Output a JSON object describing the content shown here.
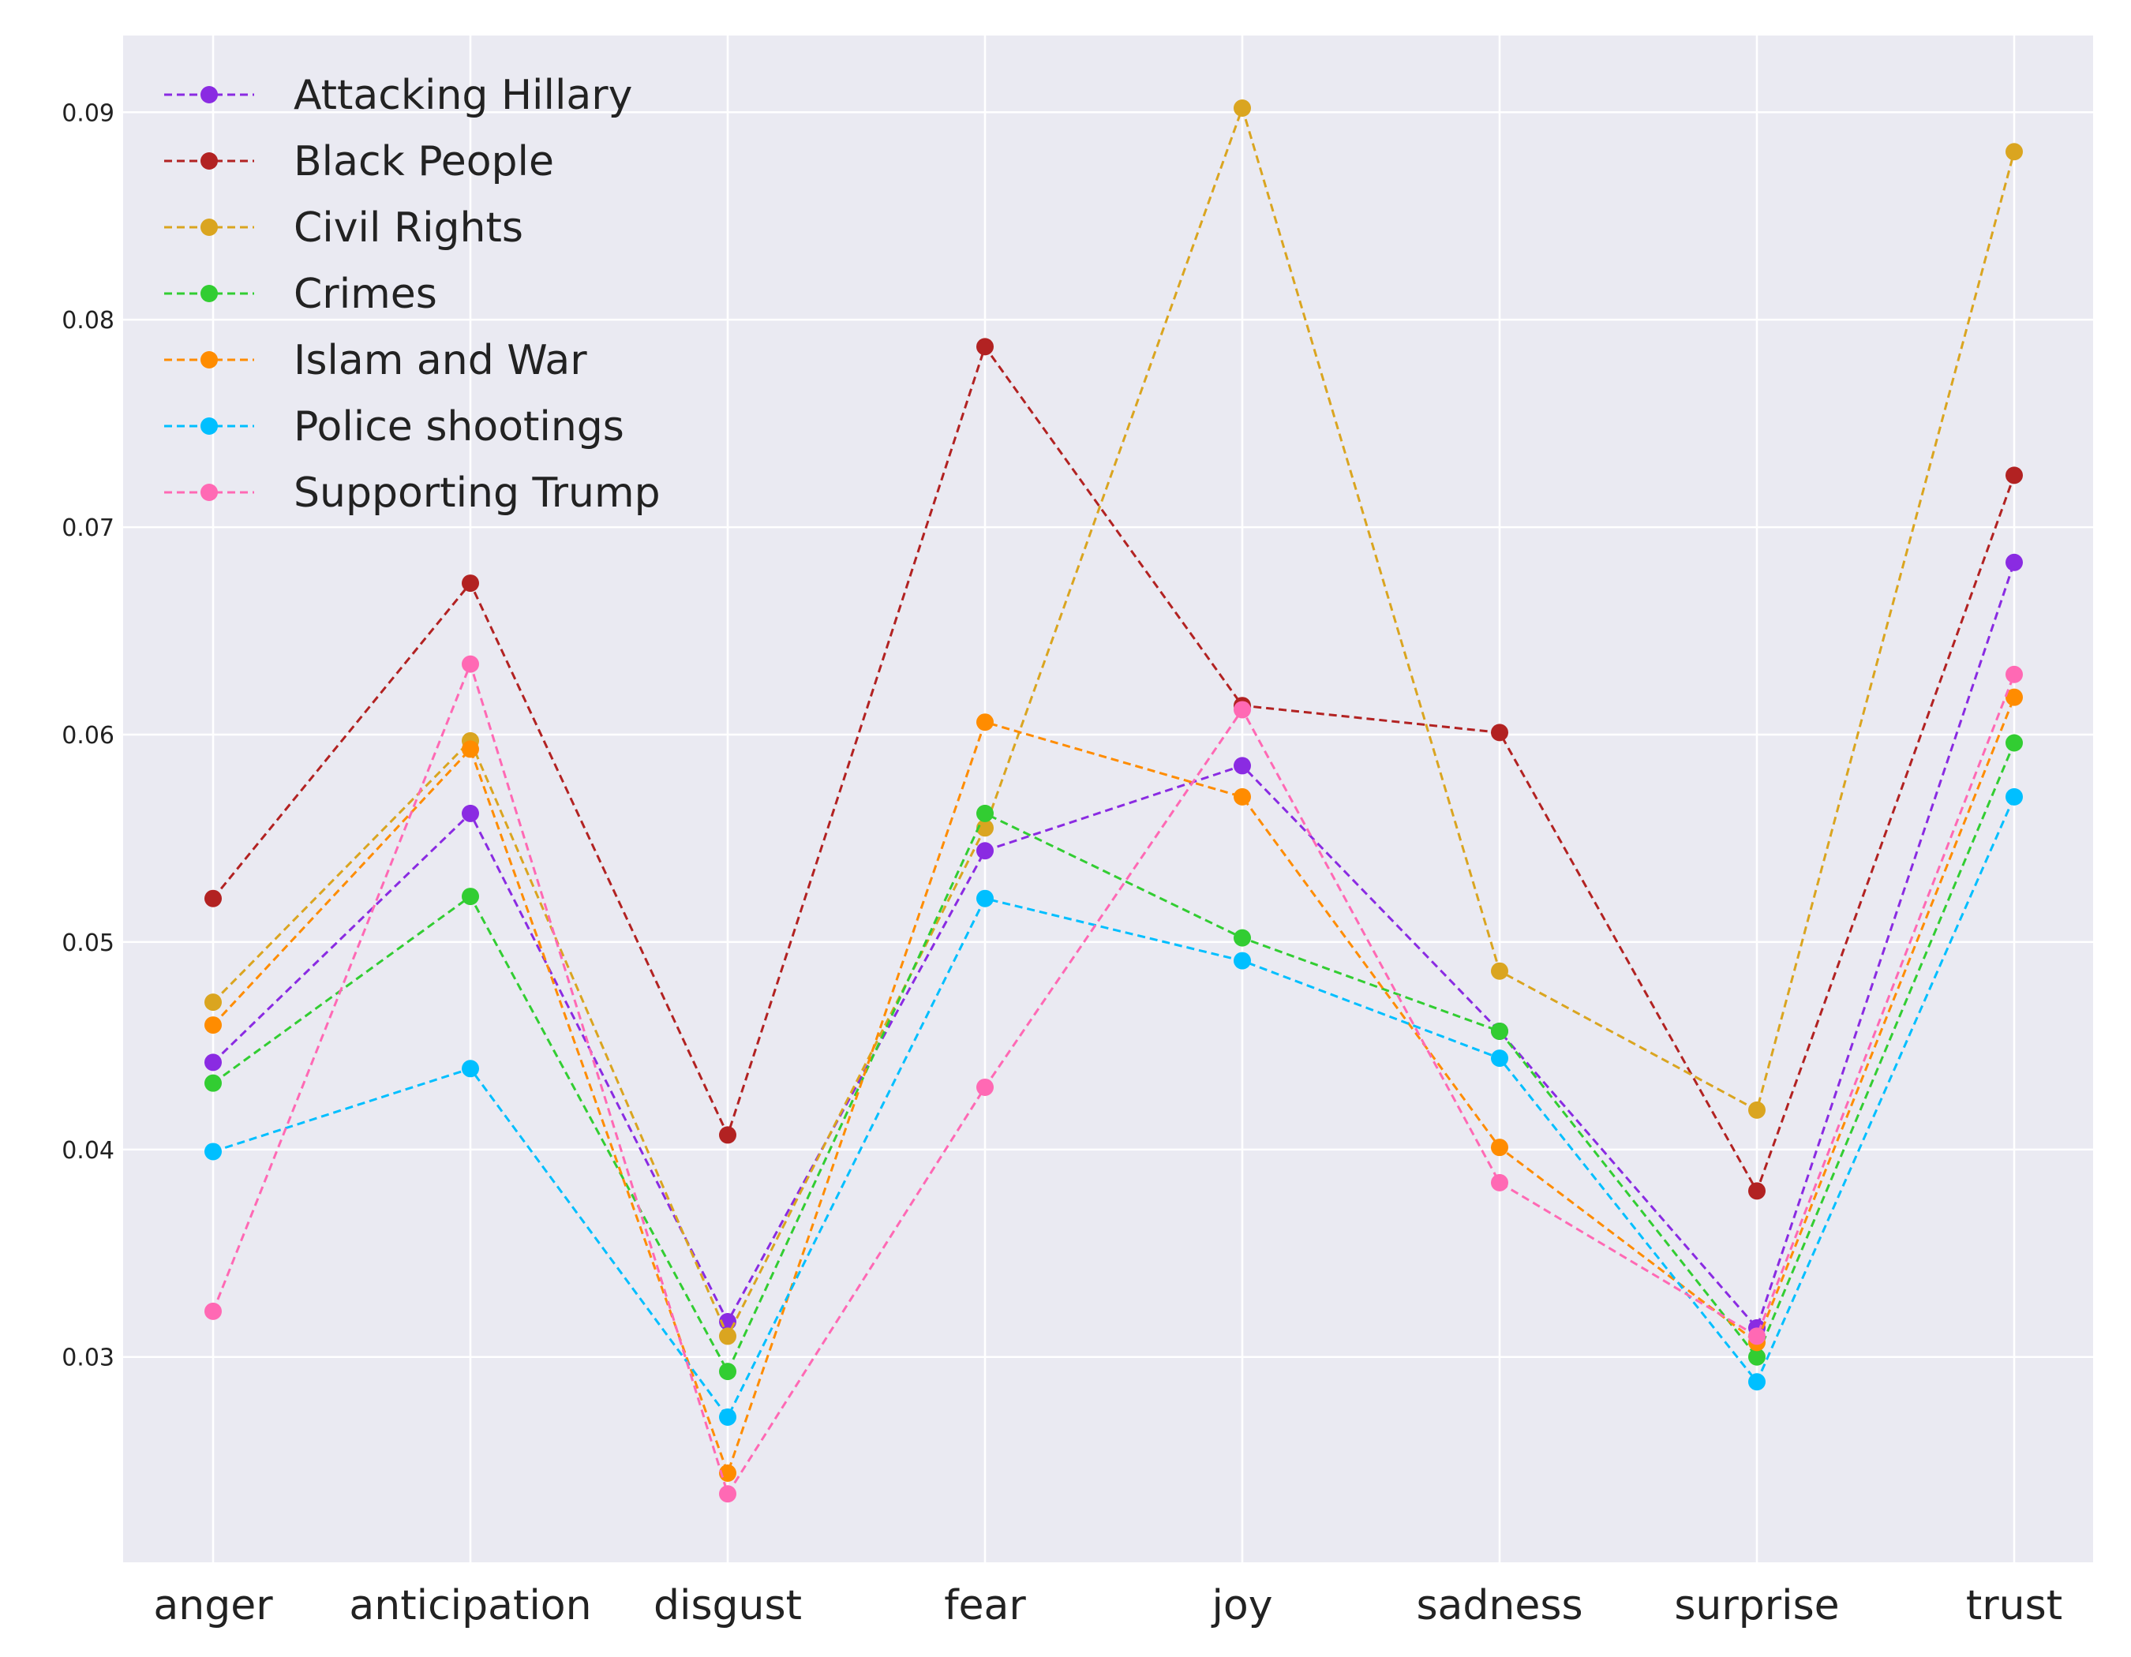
{
  "chart_data": {
    "type": "line",
    "title": "",
    "xlabel": "",
    "ylabel": "",
    "categories": [
      "anger",
      "anticipation",
      "disgust",
      "fear",
      "joy",
      "sadness",
      "surprise",
      "trust"
    ],
    "yticks": [
      "0.03",
      "0.04",
      "0.05",
      "0.06",
      "0.07",
      "0.08",
      "0.09"
    ],
    "ylim": [
      0.0201,
      0.0937
    ],
    "grid": true,
    "legend_position": "top-left",
    "series": [
      {
        "name": "Attacking Hillary",
        "color": "#8a2be2",
        "values": [
          0.0442,
          0.0562,
          0.0317,
          0.0544,
          0.0585,
          0.0457,
          0.0314,
          0.0683
        ]
      },
      {
        "name": "Black People",
        "color": "#b22222",
        "values": [
          0.0521,
          0.0673,
          0.0407,
          0.0787,
          0.0614,
          0.0601,
          0.038,
          0.0725
        ]
      },
      {
        "name": "Civil Rights",
        "color": "#daa520",
        "values": [
          0.0471,
          0.0597,
          0.031,
          0.0555,
          0.0902,
          0.0486,
          0.0419,
          0.0881
        ]
      },
      {
        "name": "Crimes",
        "color": "#32cd32",
        "values": [
          0.0432,
          0.0522,
          0.0293,
          0.0562,
          0.0502,
          0.0457,
          0.03,
          0.0596
        ]
      },
      {
        "name": "Islam and War",
        "color": "#ff8c00",
        "values": [
          0.046,
          0.0593,
          0.0244,
          0.0606,
          0.057,
          0.0401,
          0.0307,
          0.0618
        ]
      },
      {
        "name": "Police shootings",
        "color": "#00bfff",
        "values": [
          0.0399,
          0.0439,
          0.0271,
          0.0521,
          0.0491,
          0.0444,
          0.0288,
          0.057
        ]
      },
      {
        "name": "Supporting Trump",
        "color": "#ff69b4",
        "values": [
          0.0322,
          0.0634,
          0.0234,
          0.043,
          0.0612,
          0.0384,
          0.031,
          0.0629
        ]
      }
    ]
  }
}
